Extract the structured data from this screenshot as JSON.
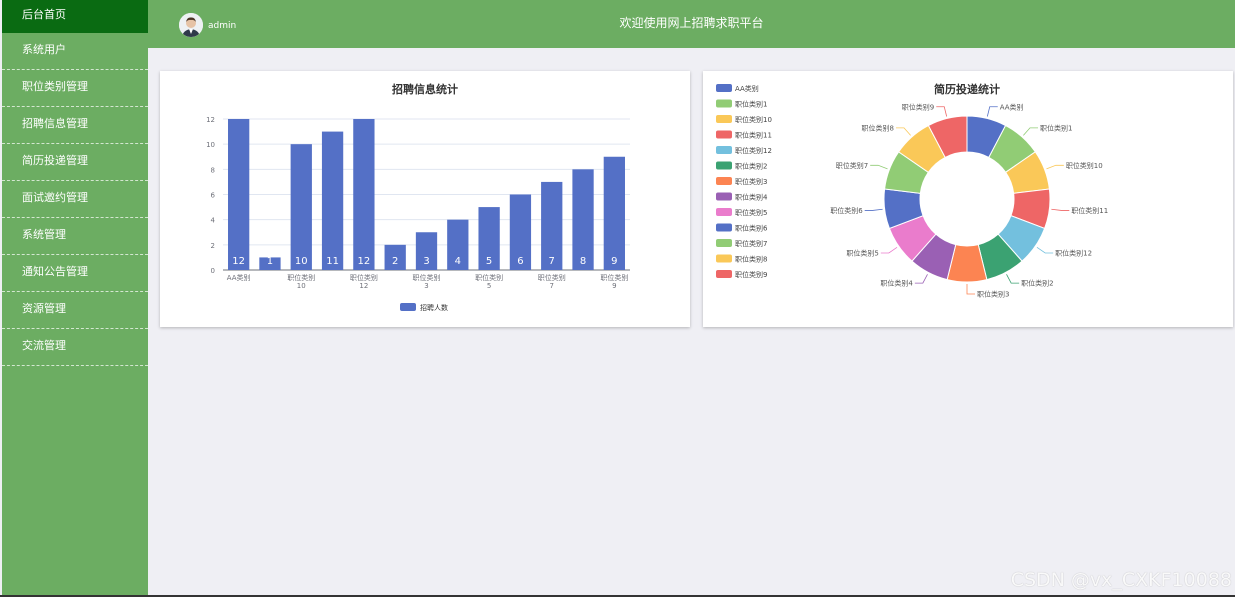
{
  "sidebar": {
    "items": [
      {
        "label": "后台首页"
      },
      {
        "label": "系统用户"
      },
      {
        "label": "职位类别管理"
      },
      {
        "label": "招聘信息管理"
      },
      {
        "label": "简历投递管理"
      },
      {
        "label": "面试邀约管理"
      },
      {
        "label": "系统管理"
      },
      {
        "label": "通知公告管理"
      },
      {
        "label": "资源管理"
      },
      {
        "label": "交流管理"
      }
    ]
  },
  "header": {
    "user": "admin",
    "title": "欢迎使用网上招聘求职平台"
  },
  "watermark": "CSDN @vx_CXKF10088",
  "chart_data": [
    {
      "type": "bar",
      "title": "招聘信息统计",
      "categories": [
        "AA类别",
        "职位类别1",
        "职位类别10",
        "职位类别11",
        "职位类别12",
        "职位类别2",
        "职位类别3",
        "职位类别4",
        "职位类别5",
        "职位类别6",
        "职位类别7",
        "职位类别8",
        "职位类别9"
      ],
      "tick_labels": [
        [
          "AA类别"
        ],
        [],
        [
          "职位类别",
          "10"
        ],
        [],
        [
          "职位类别",
          "12"
        ],
        [],
        [
          "职位类别",
          "3"
        ],
        [],
        [
          "职位类别",
          "5"
        ],
        [],
        [
          "职位类别",
          "7"
        ],
        [],
        [
          "职位类别",
          "9"
        ]
      ],
      "series": [
        {
          "name": "招聘人数",
          "values": [
            12,
            1,
            10,
            11,
            12,
            2,
            3,
            4,
            5,
            6,
            7,
            8,
            9
          ],
          "color": "#5470c6"
        }
      ],
      "yticks": [
        0,
        2,
        4,
        6,
        8,
        10,
        12
      ],
      "ylim": [
        0,
        12
      ],
      "legend": "bottom"
    },
    {
      "type": "pie",
      "title": "简历投递统计",
      "labels": [
        "AA类别",
        "职位类别1",
        "职位类别10",
        "职位类别11",
        "职位类别12",
        "职位类别2",
        "职位类别3",
        "职位类别4",
        "职位类别5",
        "职位类别6",
        "职位类别7",
        "职位类别8",
        "职位类别9"
      ],
      "values": [
        1,
        1,
        1,
        1,
        1,
        1,
        1,
        1,
        1,
        1,
        1,
        1,
        1
      ],
      "colors": [
        "#5470c6",
        "#91cc75",
        "#fac858",
        "#ee6666",
        "#73c0de",
        "#3ba272",
        "#fc8452",
        "#9a60b4",
        "#ea7ccc",
        "#5470c6",
        "#91cc75",
        "#fac858",
        "#ee6666"
      ],
      "donut": true,
      "legend": "left"
    }
  ]
}
